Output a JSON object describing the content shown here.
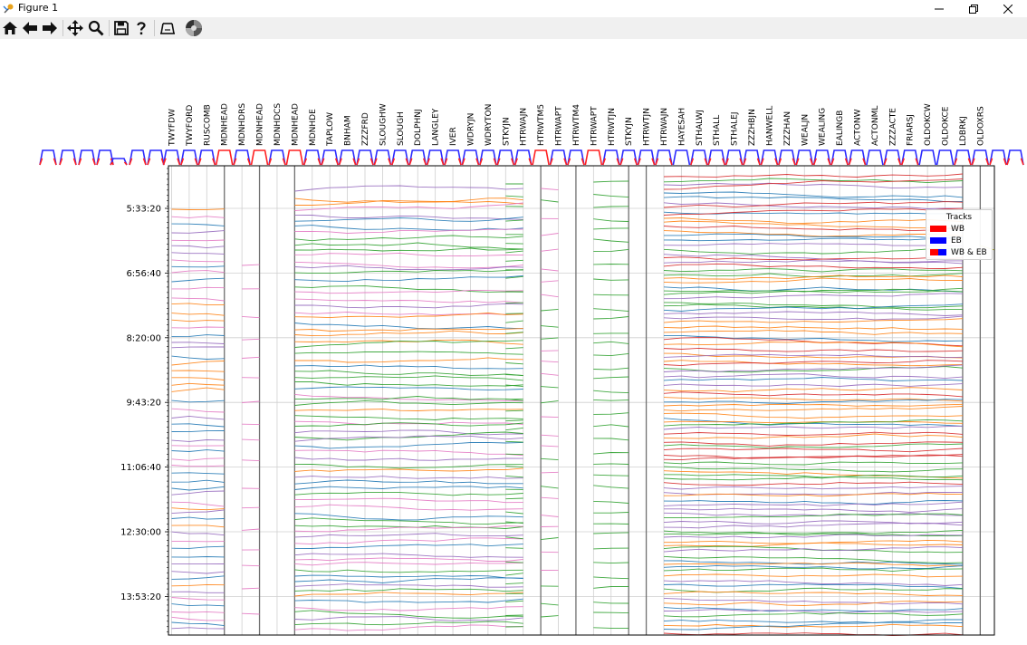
{
  "window": {
    "title": "Figure 1",
    "app_icon": "matplotlib-icon",
    "controls": [
      "minimize-icon",
      "restore-icon",
      "close-icon"
    ]
  },
  "toolbar": {
    "buttons": [
      {
        "name": "home-button",
        "icon": "home-icon"
      },
      {
        "name": "back-button",
        "icon": "arrow-left-icon"
      },
      {
        "name": "forward-button",
        "icon": "arrow-right-icon"
      },
      {
        "name": "pan-button",
        "icon": "move-icon"
      },
      {
        "name": "zoom-button",
        "icon": "magnifier-icon"
      },
      {
        "name": "save-button",
        "icon": "floppy-disk-icon"
      },
      {
        "name": "help-button",
        "icon": "question-icon"
      },
      {
        "name": "subplots-button",
        "icon": "subplots-icon"
      },
      {
        "name": "customize-button",
        "icon": "color-wheel-icon"
      }
    ]
  },
  "chart_data": {
    "type": "line",
    "title": "",
    "xlabel": "",
    "ylabel": "",
    "stations": [
      "TWYFDW",
      "TWYFORD",
      "RUSCOMB",
      "MDNHEAD",
      "MDNHDRS",
      "MDNHEAD",
      "MDNHDCS",
      "MDNHEAD",
      "MDNHDE",
      "TAPLOW",
      "BNHAM",
      "ZZZFRD",
      "SLOUGHW",
      "SLOUGH",
      "DOLPHNJ",
      "LANGLEY",
      "IVER",
      "WDRYJN",
      "WDRYTON",
      "STKYJN",
      "HTRWAJN",
      "HTRWTM5",
      "HTRWAPT",
      "HTRWTM4",
      "HTRWAPT",
      "HTRWTJN",
      "STKYJN",
      "HTRWTJN",
      "HTRWAJN",
      "HAYESAH",
      "STHALWJ",
      "STHALL",
      "STHALEJ",
      "ZZZHBJN",
      "HANWELL",
      "ZZZHAN",
      "WEALJN",
      "WEALING",
      "EALINGB",
      "ACTONW",
      "ACTONML",
      "ZZZACTE",
      "FRIARSJ",
      "OLDOKCW",
      "OLDOKCE",
      "LDBRKJ",
      "OLDOXRS"
    ],
    "y_ticks": [
      "5:33:20",
      "6:56:40",
      "8:20:00",
      "9:43:20",
      "11:06:40",
      "12:30:00",
      "13:53:20"
    ],
    "grid": true,
    "legend": {
      "title": "Tracks",
      "placement": "top-right",
      "entries": [
        {
          "label": "WB",
          "colors": [
            "#ff0000"
          ]
        },
        {
          "label": "EB",
          "colors": [
            "#0000ff"
          ]
        },
        {
          "label": "WB & EB",
          "colors": [
            "#ff0000",
            "#0000ff"
          ]
        }
      ]
    },
    "series_colors": [
      "#1f77b4",
      "#ff7f0e",
      "#2ca02c",
      "#d62728",
      "#9467bd",
      "#e377c2"
    ]
  }
}
